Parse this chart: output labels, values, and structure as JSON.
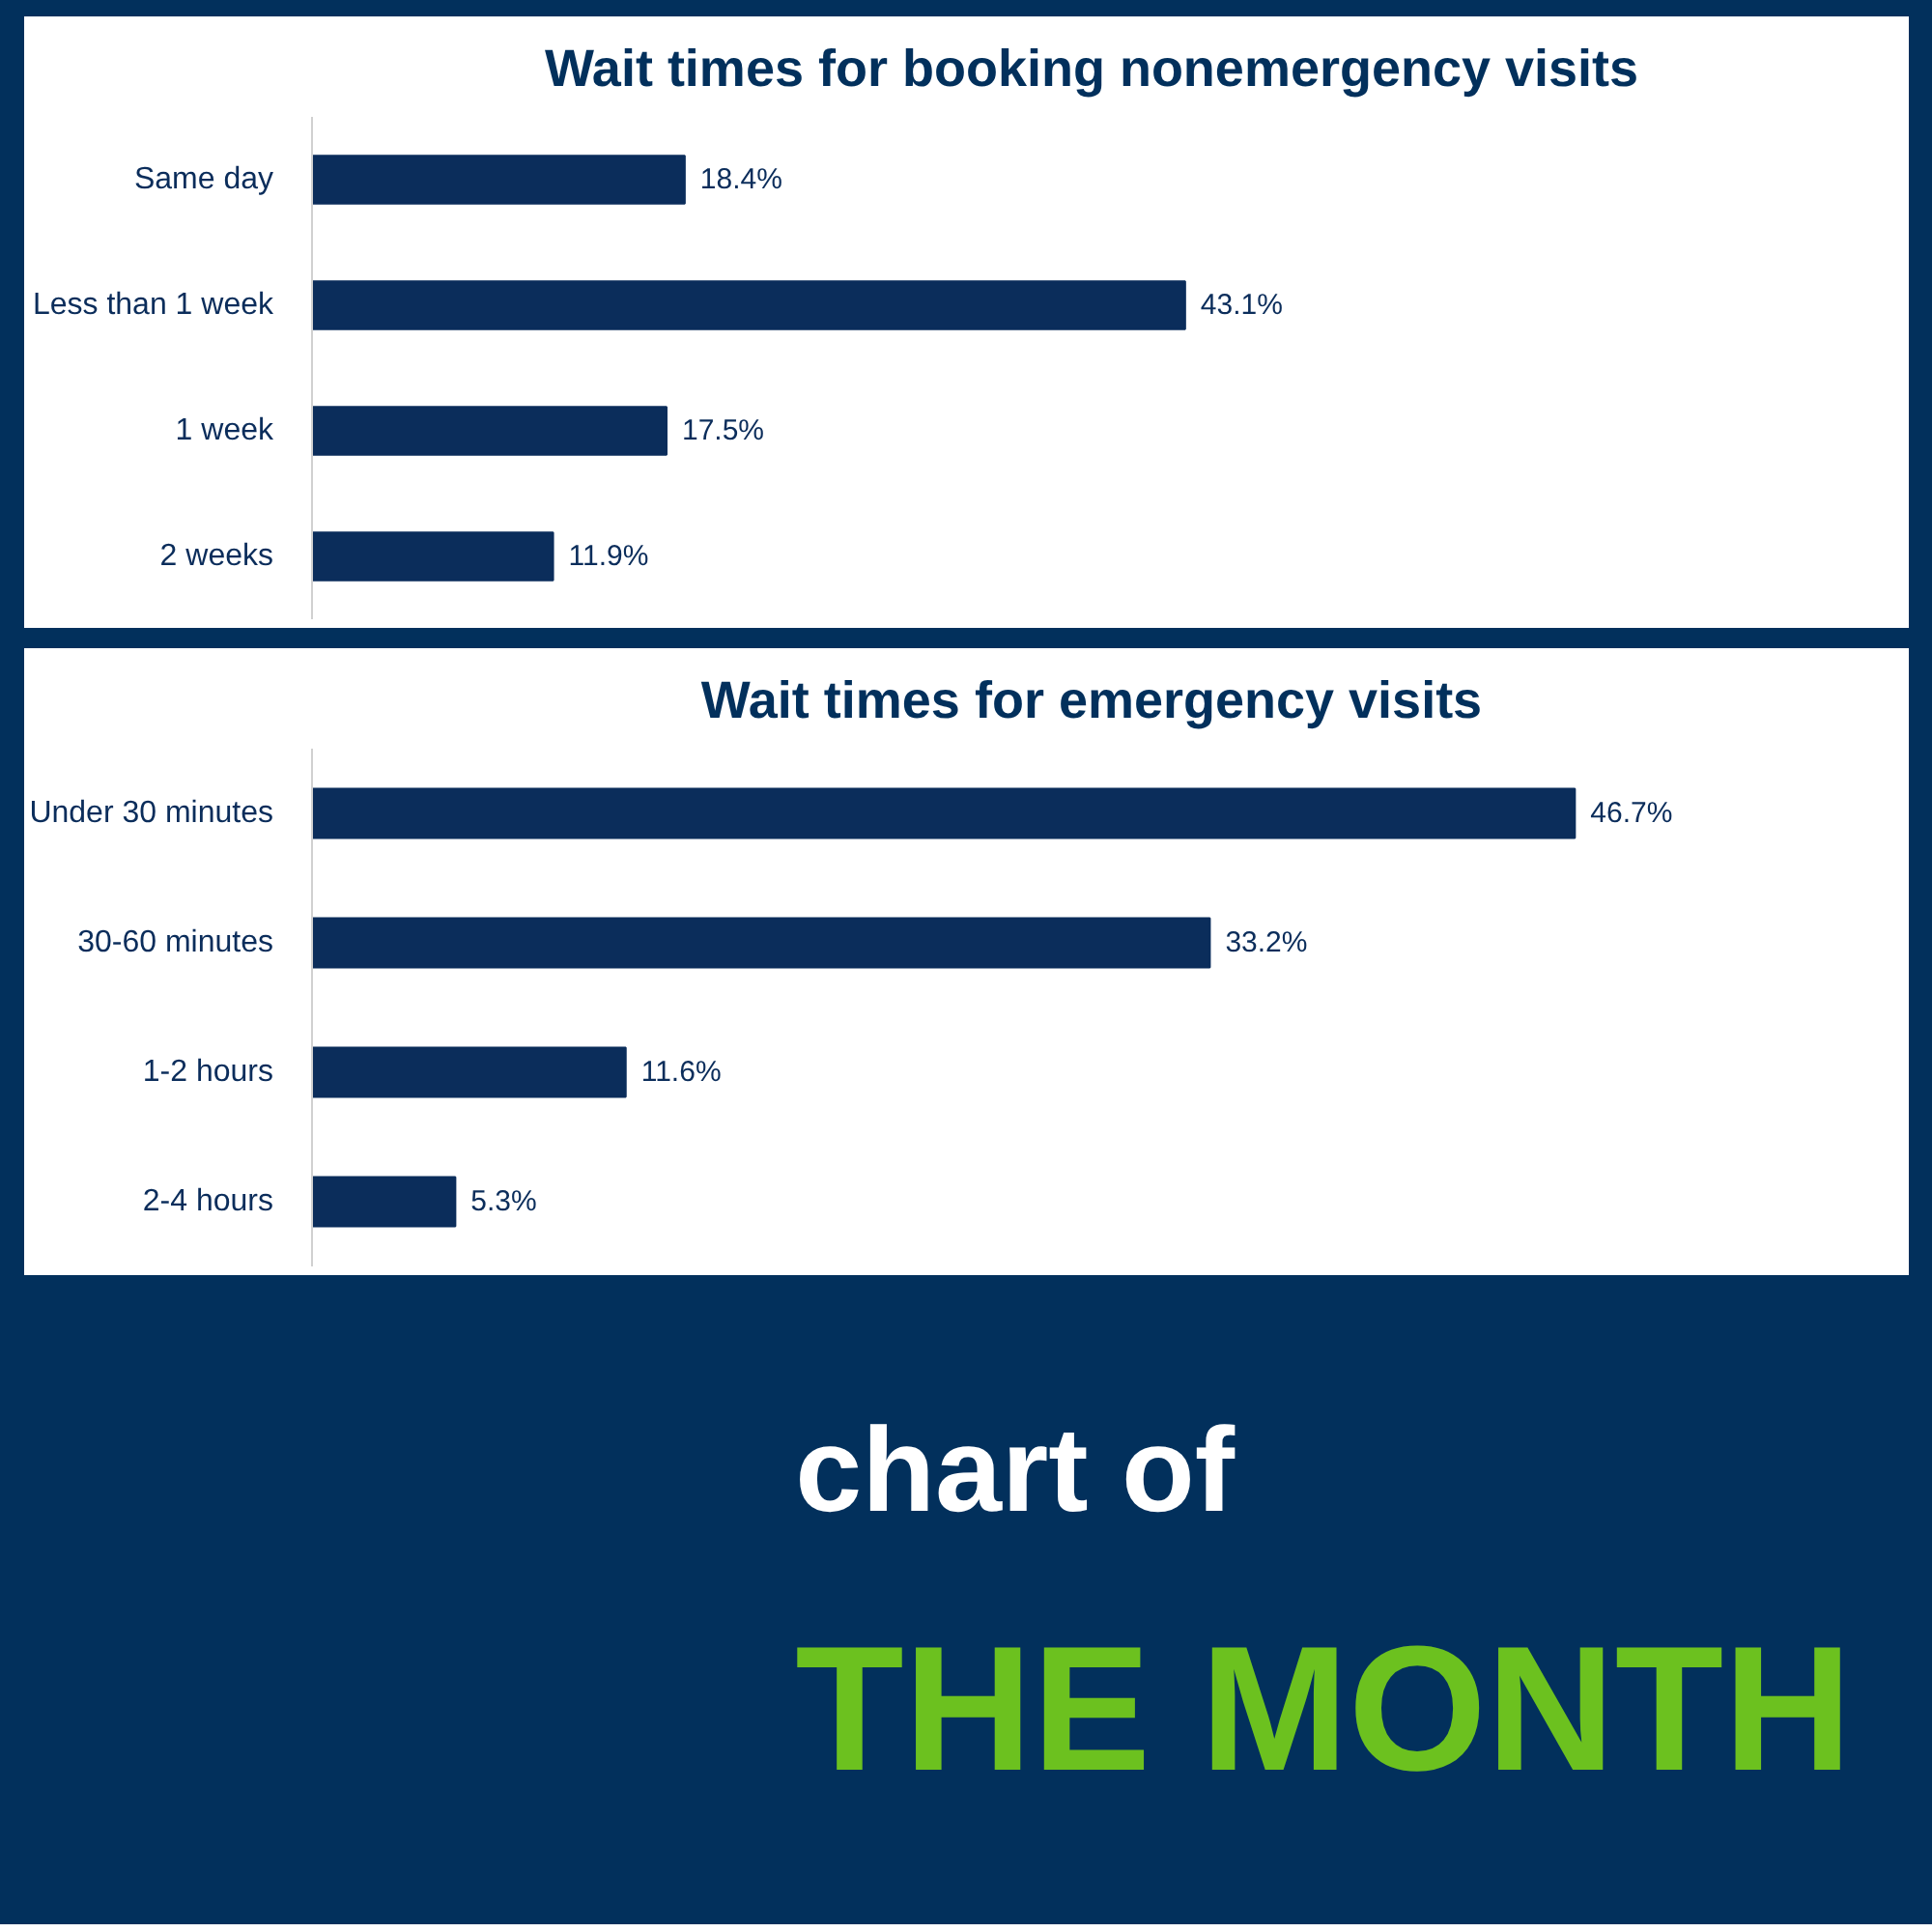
{
  "chart_data": [
    {
      "type": "bar",
      "orientation": "horizontal",
      "title": "Wait times for booking nonemergency visits",
      "categories": [
        "Same day",
        "Less than 1 week",
        "1 week",
        "2 weeks"
      ],
      "values": [
        18.4,
        43.1,
        17.5,
        11.9
      ],
      "value_labels": [
        "18.4%",
        "43.1%",
        "17.5%",
        "11.9%"
      ],
      "color": "#0b2d5b",
      "grid": false
    },
    {
      "type": "bar",
      "orientation": "horizontal",
      "title": "Wait times for emergency visits",
      "categories": [
        "Under 30 minutes",
        "30-60 minutes",
        "1-2 hours",
        "2-4 hours"
      ],
      "values": [
        46.7,
        33.2,
        11.6,
        5.3
      ],
      "value_labels": [
        "46.7%",
        "33.2%",
        "11.6%",
        "5.3%"
      ],
      "color": "#0b2d5b",
      "grid": false
    },
    {
      "type": "other",
      "annotations": [
        "chart of",
        "THE MONTH"
      ]
    }
  ]
}
